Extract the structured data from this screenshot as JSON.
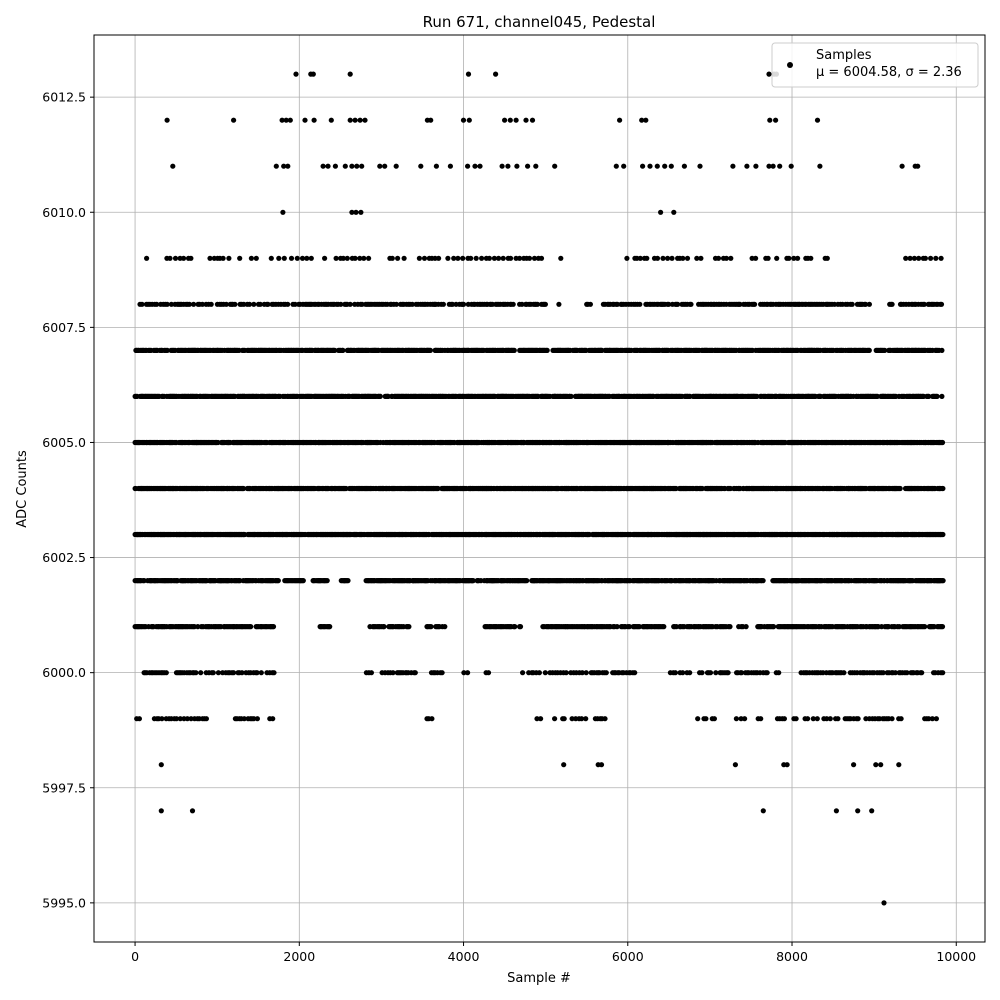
{
  "chart_data": {
    "type": "scatter",
    "title": "Run 671, channel045, Pedestal",
    "xlabel": "Sample #",
    "ylabel": "ADC Counts",
    "xlim": [
      -500,
      10350
    ],
    "ylim": [
      5994.15,
      6013.85
    ],
    "x_ticks": [
      0,
      2000,
      4000,
      6000,
      8000,
      10000
    ],
    "x_tick_labels": [
      "0",
      "2000",
      "4000",
      "6000",
      "8000",
      "10000"
    ],
    "y_ticks": [
      5995.0,
      5997.5,
      6000.0,
      6002.5,
      6005.0,
      6007.5,
      6010.0,
      6012.5
    ],
    "y_tick_labels": [
      "5995.0",
      "5997.5",
      "6000.0",
      "6002.5",
      "6005.0",
      "6007.5",
      "6010.0",
      "6012.5"
    ],
    "grid": true,
    "legend_position": "top-right",
    "marker_color": "#000000",
    "series": [
      {
        "name": "Samples",
        "label_line2": "μ = 6004.58, σ = 2.36",
        "points": [
          [
            9120,
            5995
          ],
          [
            320,
            5997
          ],
          [
            700,
            5997
          ],
          [
            7650,
            5997
          ],
          [
            8540,
            5997
          ],
          [
            8800,
            5997
          ],
          [
            8970,
            5997
          ],
          [
            320,
            5998
          ],
          [
            5220,
            5998
          ],
          [
            5640,
            5998
          ],
          [
            5680,
            5998
          ],
          [
            7310,
            5998
          ],
          [
            7900,
            5998
          ],
          [
            7940,
            5998
          ],
          [
            8750,
            5998
          ],
          [
            9020,
            5998
          ],
          [
            9080,
            5998
          ],
          [
            9300,
            5998
          ],
          [
            1960,
            6013
          ],
          [
            2140,
            6013
          ],
          [
            2170,
            6013
          ],
          [
            2620,
            6013
          ],
          [
            4060,
            6013
          ],
          [
            4390,
            6013
          ],
          [
            7720,
            6013
          ],
          [
            7780,
            6013
          ],
          [
            7810,
            6013
          ],
          [
            390,
            6012
          ],
          [
            1200,
            6012
          ],
          [
            1790,
            6012
          ],
          [
            1840,
            6012
          ],
          [
            1890,
            6012
          ],
          [
            2070,
            6012
          ],
          [
            2180,
            6012
          ],
          [
            2390,
            6012
          ],
          [
            2620,
            6012
          ],
          [
            2680,
            6012
          ],
          [
            2740,
            6012
          ],
          [
            2800,
            6012
          ],
          [
            3560,
            6012
          ],
          [
            3600,
            6012
          ],
          [
            4000,
            6012
          ],
          [
            4070,
            6012
          ],
          [
            4500,
            6012
          ],
          [
            4570,
            6012
          ],
          [
            4640,
            6012
          ],
          [
            4760,
            6012
          ],
          [
            4840,
            6012
          ],
          [
            5900,
            6012
          ],
          [
            6170,
            6012
          ],
          [
            6220,
            6012
          ],
          [
            7730,
            6012
          ],
          [
            7800,
            6012
          ],
          [
            8310,
            6012
          ],
          [
            460,
            6011
          ],
          [
            1720,
            6011
          ],
          [
            1810,
            6011
          ],
          [
            1860,
            6011
          ],
          [
            2290,
            6011
          ],
          [
            2350,
            6011
          ],
          [
            2440,
            6011
          ],
          [
            2560,
            6011
          ],
          [
            2640,
            6011
          ],
          [
            2700,
            6011
          ],
          [
            2760,
            6011
          ],
          [
            2980,
            6011
          ],
          [
            3040,
            6011
          ],
          [
            3180,
            6011
          ],
          [
            3480,
            6011
          ],
          [
            3670,
            6011
          ],
          [
            3840,
            6011
          ],
          [
            4050,
            6011
          ],
          [
            4140,
            6011
          ],
          [
            4200,
            6011
          ],
          [
            4470,
            6011
          ],
          [
            4540,
            6011
          ],
          [
            4650,
            6011
          ],
          [
            4780,
            6011
          ],
          [
            4880,
            6011
          ],
          [
            5110,
            6011
          ],
          [
            5860,
            6011
          ],
          [
            5950,
            6011
          ],
          [
            6180,
            6011
          ],
          [
            6270,
            6011
          ],
          [
            6360,
            6011
          ],
          [
            6450,
            6011
          ],
          [
            6530,
            6011
          ],
          [
            6690,
            6011
          ],
          [
            6880,
            6011
          ],
          [
            7280,
            6011
          ],
          [
            7450,
            6011
          ],
          [
            7560,
            6011
          ],
          [
            7720,
            6011
          ],
          [
            7770,
            6011
          ],
          [
            7850,
            6011
          ],
          [
            7990,
            6011
          ],
          [
            8340,
            6011
          ],
          [
            9340,
            6011
          ],
          [
            9500,
            6011
          ],
          [
            9530,
            6011
          ],
          [
            1800,
            6010
          ],
          [
            2640,
            6010
          ],
          [
            2690,
            6010
          ],
          [
            2750,
            6010
          ],
          [
            6400,
            6010
          ],
          [
            6560,
            6010
          ]
        ],
        "rows": [
          {
            "y": 6009,
            "start": 140,
            "end": 9820,
            "step": 47,
            "gaps": [
              [
                150,
                350
              ],
              [
                700,
                900
              ],
              [
                1500,
                1650
              ],
              [
                3000,
                3100
              ],
              [
                3300,
                3400
              ],
              [
                3700,
                3800
              ],
              [
                4950,
                5150
              ],
              [
                5200,
                5850
              ],
              [
                6900,
                6950
              ],
              [
                7350,
                7500
              ],
              [
                7600,
                7650
              ],
              [
                8250,
                8400
              ],
              [
                8450,
                8800
              ],
              [
                8900,
                9380
              ]
            ],
            "seed": 11
          },
          {
            "y": 6008,
            "start": 60,
            "end": 9830,
            "step": 22,
            "gaps": [
              [
                5000,
                5150
              ],
              [
                5200,
                5480
              ],
              [
                5550,
                5700
              ],
              [
                8950,
                9180
              ]
            ],
            "seed": 12
          },
          {
            "y": 6007,
            "start": 10,
            "end": 9830,
            "step": 13,
            "gaps": [
              [
                5020,
                5080
              ],
              [
                5300,
                5330
              ],
              [
                8950,
                9010
              ]
            ],
            "seed": 13
          },
          {
            "y": 6006,
            "start": 0,
            "end": 9840,
            "step": 11,
            "gaps": [],
            "seed": 14
          },
          {
            "y": 6005,
            "start": 0,
            "end": 9840,
            "step": 9,
            "gaps": [],
            "seed": 15
          },
          {
            "y": 6004,
            "start": 0,
            "end": 9840,
            "step": 9,
            "gaps": [],
            "seed": 16
          },
          {
            "y": 6003,
            "start": 0,
            "end": 9840,
            "step": 8,
            "gaps": [],
            "seed": 17
          },
          {
            "y": 6002,
            "start": 0,
            "end": 9840,
            "step": 11,
            "gaps": [
              [
                1750,
                1820
              ],
              [
                2050,
                2150
              ],
              [
                2350,
                2500
              ],
              [
                2600,
                2800
              ],
              [
                4780,
                4830
              ],
              [
                7650,
                7750
              ]
            ],
            "seed": 18
          },
          {
            "y": 6001,
            "start": 0,
            "end": 9840,
            "step": 16,
            "gaps": [
              [
                1700,
                2250
              ],
              [
                2400,
                2850
              ],
              [
                3350,
                3550
              ],
              [
                3800,
                4250
              ],
              [
                4700,
                4950
              ],
              [
                6450,
                6550
              ],
              [
                7250,
                7350
              ],
              [
                7450,
                7580
              ]
            ],
            "seed": 19
          },
          {
            "y": 6000,
            "start": 110,
            "end": 9840,
            "step": 26,
            "gaps": [
              [
                400,
                500
              ],
              [
                1700,
                2800
              ],
              [
                2900,
                3000
              ],
              [
                3450,
                3580
              ],
              [
                3750,
                3980
              ],
              [
                4050,
                4270
              ],
              [
                4310,
                4700
              ],
              [
                5000,
                5050
              ],
              [
                6100,
                6500
              ],
              [
                6800,
                6860
              ],
              [
                7700,
                7780
              ],
              [
                7850,
                8100
              ],
              [
                9600,
                9700
              ]
            ],
            "seed": 20
          },
          {
            "y": 5999,
            "start": 20,
            "end": 9800,
            "step": 33,
            "gaps": [
              [
                60,
                230
              ],
              [
                920,
                1200
              ],
              [
                1500,
                1640
              ],
              [
                1700,
                3550
              ],
              [
                3650,
                4880
              ],
              [
                4950,
                5100
              ],
              [
                5800,
                6850
              ],
              [
                7150,
                7250
              ],
              [
                7480,
                7550
              ],
              [
                7620,
                7820
              ],
              [
                8050,
                8150
              ],
              [
                9340,
                9600
              ]
            ],
            "seed": 21
          }
        ]
      }
    ]
  }
}
